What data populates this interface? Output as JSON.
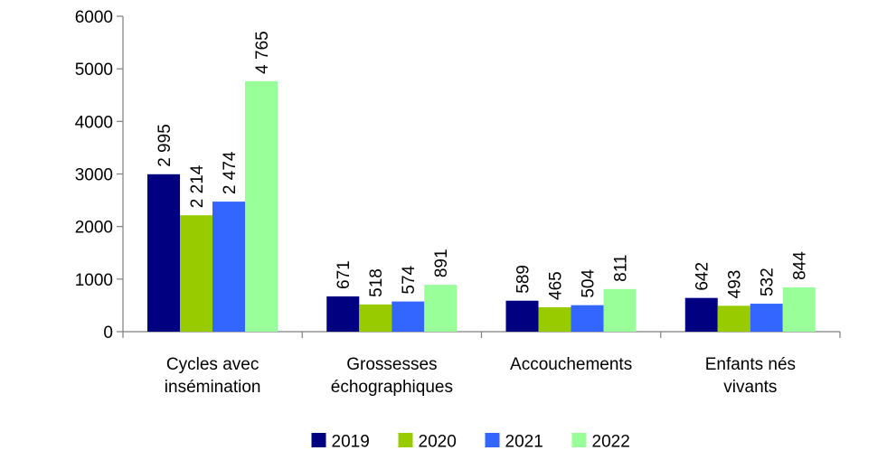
{
  "chart_data": {
    "type": "bar",
    "categories": [
      [
        "Cycles avec",
        "insémination"
      ],
      [
        "Grossesses",
        "échographiques"
      ],
      [
        "Accouchements"
      ],
      [
        "Enfants nés",
        "vivants"
      ]
    ],
    "series": [
      {
        "name": "2019",
        "color": "#000080",
        "values": [
          2995,
          671,
          589,
          642
        ],
        "labels": [
          "2 995",
          "671",
          "589",
          "642"
        ]
      },
      {
        "name": "2020",
        "color": "#99CC00",
        "values": [
          2214,
          518,
          465,
          493
        ],
        "labels": [
          "2 214",
          "518",
          "465",
          "493"
        ]
      },
      {
        "name": "2021",
        "color": "#3366FF",
        "values": [
          2474,
          574,
          504,
          532
        ],
        "labels": [
          "2 474",
          "574",
          "504",
          "532"
        ]
      },
      {
        "name": "2022",
        "color": "#99FF99",
        "values": [
          4765,
          891,
          811,
          844
        ],
        "labels": [
          "4 765",
          "891",
          "811",
          "844"
        ]
      }
    ],
    "ylim": [
      0,
      6000
    ],
    "yticks": [
      0,
      1000,
      2000,
      3000,
      4000,
      5000,
      6000
    ],
    "ytick_labels": [
      "0",
      "1000",
      "2000",
      "3000",
      "4000",
      "5000",
      "6000"
    ],
    "title": "",
    "xlabel": "",
    "ylabel": "",
    "grid": false,
    "legend": "bottom"
  }
}
